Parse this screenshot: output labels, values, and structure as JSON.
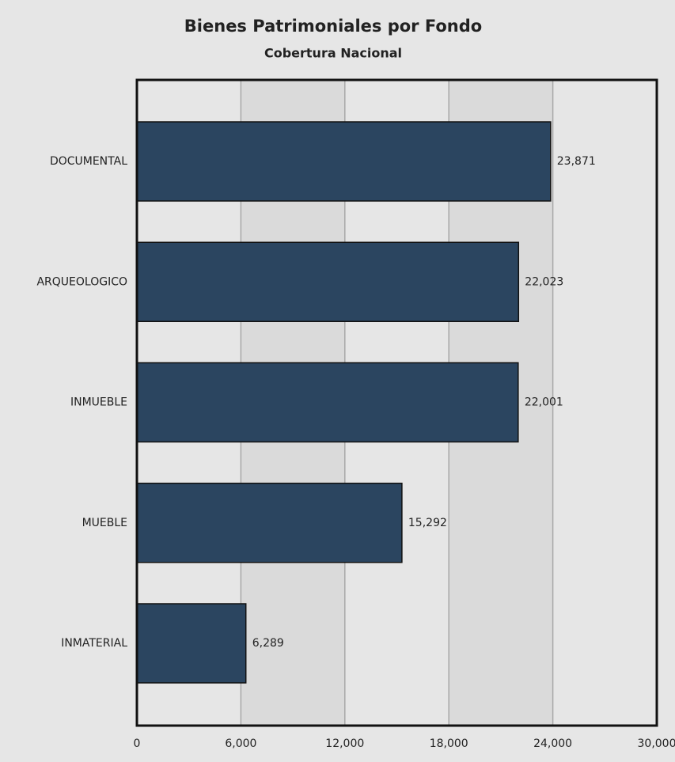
{
  "chart_data": {
    "type": "bar",
    "orientation": "horizontal",
    "title": "Bienes Patrimoniales por Fondo",
    "subtitle": "Cobertura Nacional",
    "categories": [
      "DOCUMENTAL",
      "ARQUEOLOGICO",
      "INMUEBLE",
      "MUEBLE",
      "INMATERIAL"
    ],
    "values": [
      23871,
      22023,
      22001,
      15292,
      6289
    ],
    "value_labels": [
      "23,871",
      "22,023",
      "22,001",
      "15,292",
      "6,289"
    ],
    "color": "#2b4560",
    "xlim": [
      0,
      30000
    ],
    "xticks": [
      0,
      {
        "value": 6000,
        "label": "6,000"
      },
      {
        "value": 12000,
        "label": "12,000"
      },
      {
        "value": 18000,
        "label": "18,000"
      },
      {
        "value": 24000,
        "label": "24,000"
      },
      {
        "value": 30000,
        "label": "30,000"
      }
    ],
    "grid": true
  }
}
